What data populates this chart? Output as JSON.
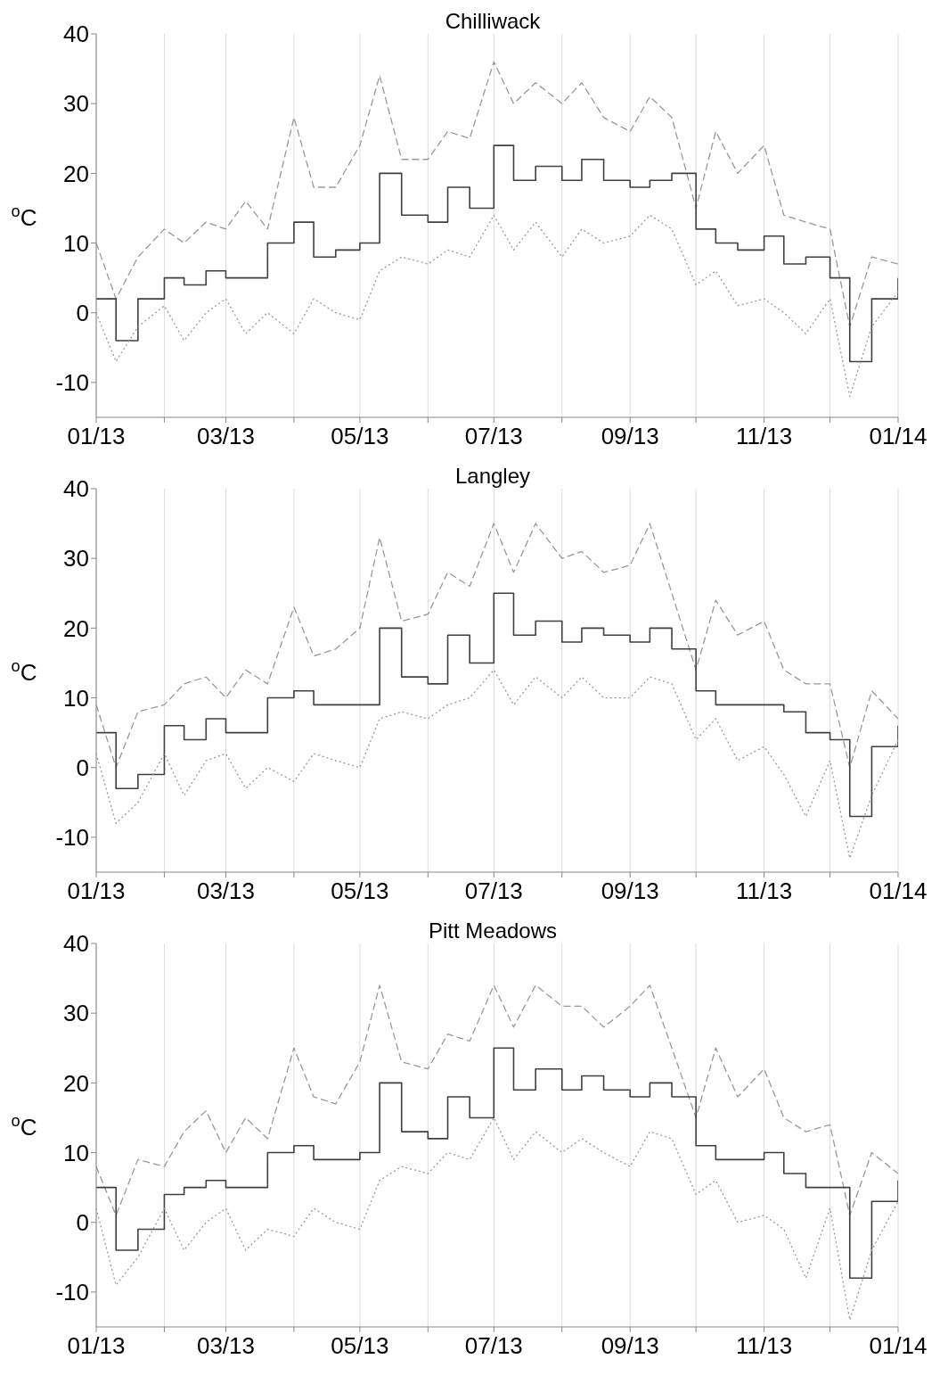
{
  "chart_data": [
    {
      "type": "line",
      "title": "Chilliwack",
      "ylabel": "$^{o}$C",
      "grid": "x",
      "x": [
        "2013-01-01",
        "2013-01-10",
        "2013-01-20",
        "2013-02-01",
        "2013-02-10",
        "2013-02-20",
        "2013-03-01",
        "2013-03-10",
        "2013-03-20",
        "2013-04-01",
        "2013-04-10",
        "2013-04-20",
        "2013-05-01",
        "2013-05-10",
        "2013-05-20",
        "2013-06-01",
        "2013-06-10",
        "2013-06-20",
        "2013-07-01",
        "2013-07-10",
        "2013-07-20",
        "2013-08-01",
        "2013-08-10",
        "2013-08-20",
        "2013-09-01",
        "2013-09-10",
        "2013-09-20",
        "2013-10-01",
        "2013-10-10",
        "2013-10-20",
        "2013-11-01",
        "2013-11-10",
        "2013-11-20",
        "2013-12-01",
        "2013-12-10",
        "2013-12-20",
        "2014-01-01"
      ],
      "xlim": [
        "2013-01-01",
        "2014-01-01"
      ],
      "xticks": [
        {
          "value": "2013-01-01",
          "label": "01/13"
        },
        {
          "value": "2013-02-01",
          "label": null
        },
        {
          "value": "2013-03-01",
          "label": "03/13"
        },
        {
          "value": "2013-04-01",
          "label": null
        },
        {
          "value": "2013-05-01",
          "label": "05/13"
        },
        {
          "value": "2013-06-01",
          "label": null
        },
        {
          "value": "2013-07-01",
          "label": "07/13"
        },
        {
          "value": "2013-08-01",
          "label": null
        },
        {
          "value": "2013-09-01",
          "label": "09/13"
        },
        {
          "value": "2013-10-01",
          "label": null
        },
        {
          "value": "2013-11-01",
          "label": "11/13"
        },
        {
          "value": "2013-12-01",
          "label": null
        },
        {
          "value": "2014-01-01",
          "label": "01/14"
        }
      ],
      "ylim": [
        -15,
        40
      ],
      "yticks": [
        -10,
        0,
        10,
        20,
        30,
        40
      ],
      "series": [
        {
          "type": "line",
          "line_style": "dashed",
          "color": "#999999",
          "values": [
            10,
            2,
            8,
            12,
            10,
            13,
            12,
            16,
            12,
            28,
            18,
            18,
            24,
            34,
            22,
            22,
            26,
            25,
            36,
            30,
            33,
            30,
            33,
            28,
            26,
            31,
            28,
            15,
            26,
            20,
            24,
            14,
            13,
            12,
            -2,
            8,
            7
          ]
        },
        {
          "type": "step",
          "line_style": "solid",
          "color": "#404040",
          "values": [
            2,
            -4,
            2,
            5,
            4,
            6,
            5,
            5,
            10,
            13,
            8,
            9,
            10,
            20,
            14,
            13,
            18,
            15,
            24,
            19,
            21,
            19,
            22,
            19,
            18,
            19,
            20,
            12,
            10,
            9,
            11,
            7,
            8,
            5,
            -7,
            2,
            5
          ]
        },
        {
          "type": "line",
          "line_style": "dotted",
          "color": "#999999",
          "values": [
            0,
            -7,
            -2,
            1,
            -4,
            0,
            2,
            -3,
            0,
            -3,
            2,
            0,
            -1,
            6,
            8,
            7,
            9,
            8,
            14,
            9,
            13,
            8,
            12,
            10,
            11,
            14,
            12,
            4,
            6,
            1,
            2,
            0,
            -3,
            2,
            -12,
            -2,
            3
          ]
        }
      ]
    },
    {
      "type": "line",
      "title": "Langley",
      "ylabel": "$^{o}$C",
      "grid": "x",
      "x": [
        "2013-01-01",
        "2013-01-10",
        "2013-01-20",
        "2013-02-01",
        "2013-02-10",
        "2013-02-20",
        "2013-03-01",
        "2013-03-10",
        "2013-03-20",
        "2013-04-01",
        "2013-04-10",
        "2013-04-20",
        "2013-05-01",
        "2013-05-10",
        "2013-05-20",
        "2013-06-01",
        "2013-06-10",
        "2013-06-20",
        "2013-07-01",
        "2013-07-10",
        "2013-07-20",
        "2013-08-01",
        "2013-08-10",
        "2013-08-20",
        "2013-09-01",
        "2013-09-10",
        "2013-09-20",
        "2013-10-01",
        "2013-10-10",
        "2013-10-20",
        "2013-11-01",
        "2013-11-10",
        "2013-11-20",
        "2013-12-01",
        "2013-12-10",
        "2013-12-20",
        "2014-01-01"
      ],
      "xlim": [
        "2013-01-01",
        "2014-01-01"
      ],
      "xticks": [
        {
          "value": "2013-01-01",
          "label": "01/13"
        },
        {
          "value": "2013-02-01",
          "label": null
        },
        {
          "value": "2013-03-01",
          "label": "03/13"
        },
        {
          "value": "2013-04-01",
          "label": null
        },
        {
          "value": "2013-05-01",
          "label": "05/13"
        },
        {
          "value": "2013-06-01",
          "label": null
        },
        {
          "value": "2013-07-01",
          "label": "07/13"
        },
        {
          "value": "2013-08-01",
          "label": null
        },
        {
          "value": "2013-09-01",
          "label": "09/13"
        },
        {
          "value": "2013-10-01",
          "label": null
        },
        {
          "value": "2013-11-01",
          "label": "11/13"
        },
        {
          "value": "2013-12-01",
          "label": null
        },
        {
          "value": "2014-01-01",
          "label": "01/14"
        }
      ],
      "ylim": [
        -15,
        40
      ],
      "yticks": [
        -10,
        0,
        10,
        20,
        30,
        40
      ],
      "series": [
        {
          "type": "line",
          "line_style": "dashed",
          "color": "#999999",
          "values": [
            9,
            0,
            8,
            9,
            12,
            13,
            10,
            14,
            12,
            23,
            16,
            17,
            20,
            33,
            21,
            22,
            28,
            26,
            35,
            28,
            35,
            30,
            31,
            28,
            29,
            35,
            25,
            14,
            24,
            19,
            21,
            14,
            12,
            12,
            0,
            11,
            7
          ]
        },
        {
          "type": "step",
          "line_style": "solid",
          "color": "#404040",
          "values": [
            5,
            -3,
            -1,
            6,
            4,
            7,
            5,
            5,
            10,
            11,
            9,
            9,
            9,
            20,
            13,
            12,
            19,
            15,
            25,
            19,
            21,
            18,
            20,
            19,
            18,
            20,
            17,
            11,
            9,
            9,
            9,
            8,
            5,
            4,
            -7,
            3,
            6
          ]
        },
        {
          "type": "line",
          "line_style": "dotted",
          "color": "#999999",
          "values": [
            2,
            -8,
            -5,
            2,
            -4,
            1,
            2,
            -3,
            0,
            -2,
            2,
            1,
            0,
            7,
            8,
            7,
            9,
            10,
            14,
            9,
            13,
            10,
            13,
            10,
            10,
            13,
            12,
            4,
            7,
            1,
            3,
            -1,
            -7,
            1,
            -13,
            -4,
            4
          ]
        }
      ]
    },
    {
      "type": "line",
      "title": "Pitt Meadows",
      "ylabel": "$^{o}$C",
      "grid": "x",
      "x": [
        "2013-01-01",
        "2013-01-10",
        "2013-01-20",
        "2013-02-01",
        "2013-02-10",
        "2013-02-20",
        "2013-03-01",
        "2013-03-10",
        "2013-03-20",
        "2013-04-01",
        "2013-04-10",
        "2013-04-20",
        "2013-05-01",
        "2013-05-10",
        "2013-05-20",
        "2013-06-01",
        "2013-06-10",
        "2013-06-20",
        "2013-07-01",
        "2013-07-10",
        "2013-07-20",
        "2013-08-01",
        "2013-08-10",
        "2013-08-20",
        "2013-09-01",
        "2013-09-10",
        "2013-09-20",
        "2013-10-01",
        "2013-10-10",
        "2013-10-20",
        "2013-11-01",
        "2013-11-10",
        "2013-11-20",
        "2013-12-01",
        "2013-12-10",
        "2013-12-20",
        "2014-01-01"
      ],
      "xlim": [
        "2013-01-01",
        "2014-01-01"
      ],
      "xticks": [
        {
          "value": "2013-01-01",
          "label": "01/13"
        },
        {
          "value": "2013-02-01",
          "label": null
        },
        {
          "value": "2013-03-01",
          "label": "03/13"
        },
        {
          "value": "2013-04-01",
          "label": null
        },
        {
          "value": "2013-05-01",
          "label": "05/13"
        },
        {
          "value": "2013-06-01",
          "label": null
        },
        {
          "value": "2013-07-01",
          "label": "07/13"
        },
        {
          "value": "2013-08-01",
          "label": null
        },
        {
          "value": "2013-09-01",
          "label": "09/13"
        },
        {
          "value": "2013-10-01",
          "label": null
        },
        {
          "value": "2013-11-01",
          "label": "11/13"
        },
        {
          "value": "2013-12-01",
          "label": null
        },
        {
          "value": "2014-01-01",
          "label": "01/14"
        }
      ],
      "ylim": [
        -15,
        40
      ],
      "yticks": [
        -10,
        0,
        10,
        20,
        30,
        40
      ],
      "series": [
        {
          "type": "line",
          "line_style": "dashed",
          "color": "#999999",
          "values": [
            8,
            1,
            9,
            8,
            13,
            16,
            10,
            15,
            12,
            25,
            18,
            17,
            23,
            34,
            23,
            22,
            27,
            26,
            34,
            28,
            34,
            31,
            31,
            28,
            31,
            34,
            25,
            15,
            25,
            18,
            22,
            15,
            13,
            14,
            1,
            10,
            7
          ]
        },
        {
          "type": "step",
          "line_style": "solid",
          "color": "#404040",
          "values": [
            5,
            -4,
            -1,
            4,
            5,
            6,
            5,
            5,
            10,
            11,
            9,
            9,
            10,
            20,
            13,
            12,
            18,
            15,
            25,
            19,
            22,
            19,
            21,
            19,
            18,
            20,
            18,
            11,
            9,
            9,
            10,
            7,
            5,
            5,
            -8,
            3,
            6
          ]
        },
        {
          "type": "line",
          "line_style": "dotted",
          "color": "#999999",
          "values": [
            2,
            -9,
            -5,
            2,
            -4,
            0,
            2,
            -4,
            -1,
            -2,
            2,
            0,
            -1,
            6,
            8,
            7,
            10,
            9,
            15,
            9,
            13,
            10,
            12,
            10,
            8,
            13,
            12,
            4,
            6,
            0,
            1,
            -1,
            -8,
            2,
            -14,
            -4,
            3
          ]
        }
      ]
    }
  ]
}
